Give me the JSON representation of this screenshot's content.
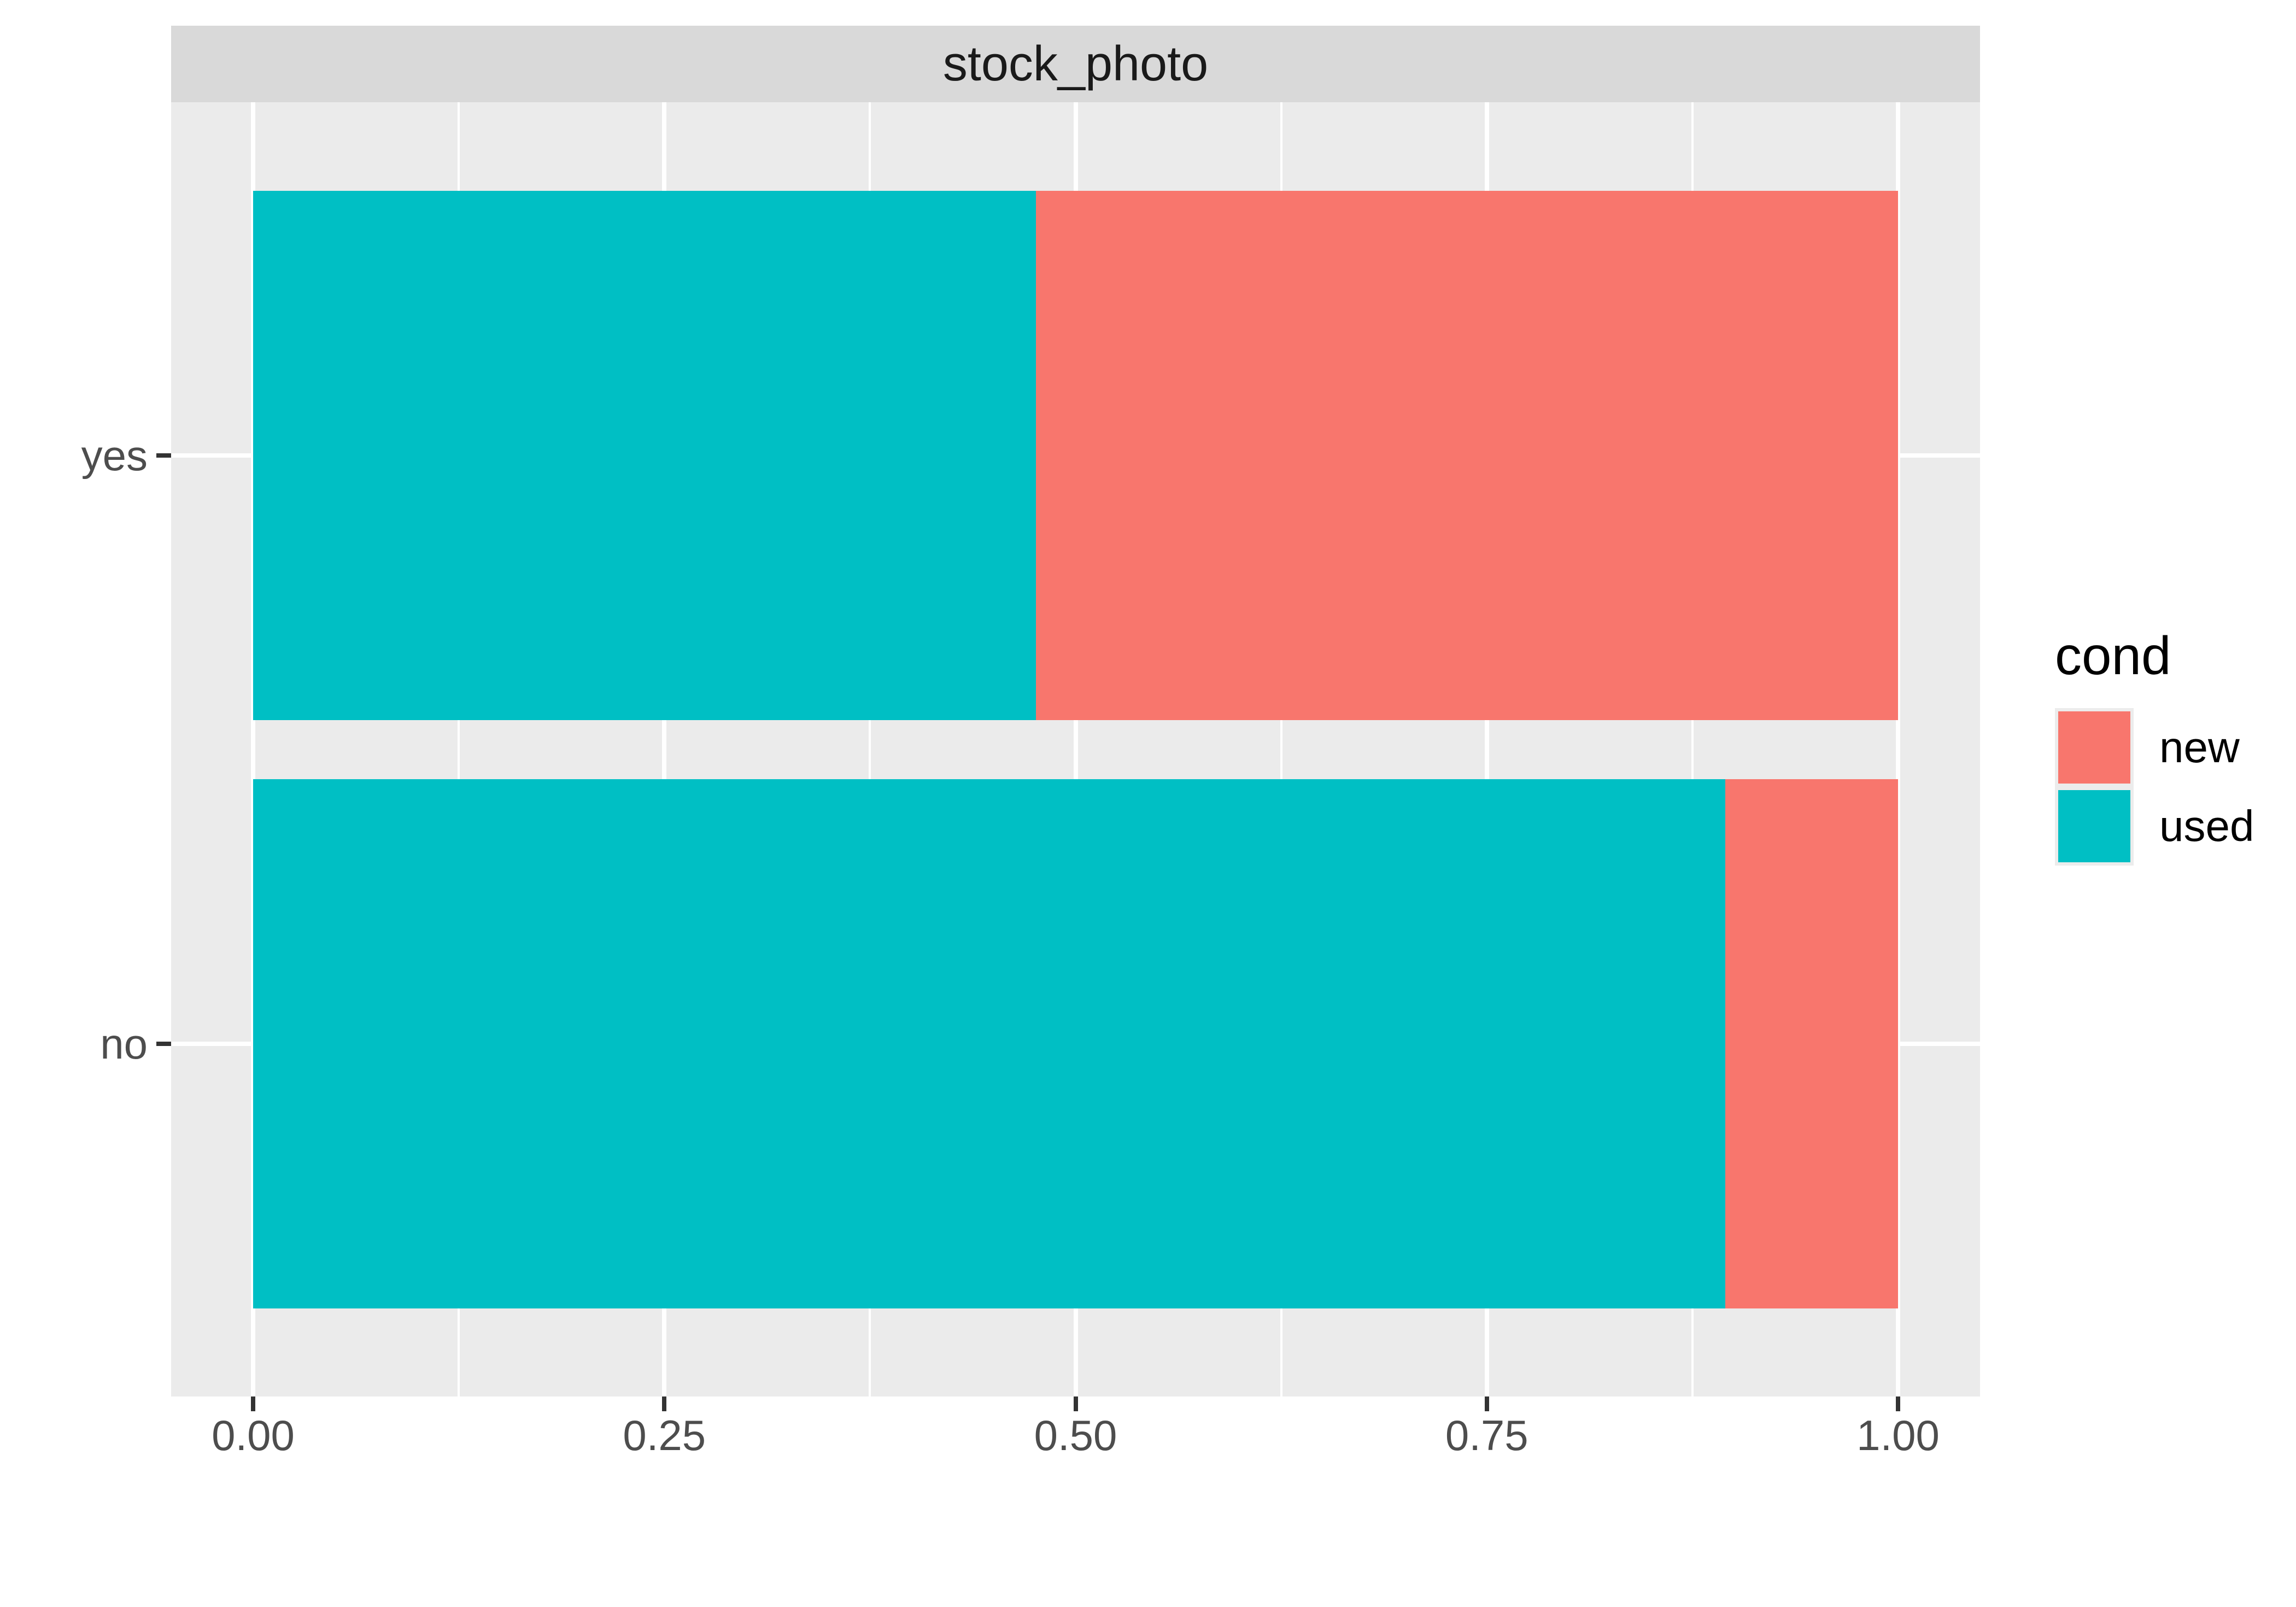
{
  "facet_strip": {
    "label": "stock_photo"
  },
  "legend": {
    "title": "cond",
    "entries": [
      {
        "label": "new",
        "color": "#F8766D"
      },
      {
        "label": "used",
        "color": "#00BFC4"
      }
    ]
  },
  "x_axis": {
    "tick_labels": [
      "0.00",
      "0.25",
      "0.50",
      "0.75",
      "1.00"
    ],
    "tick_values": [
      0,
      0.25,
      0.5,
      0.75,
      1
    ]
  },
  "y_axis": {
    "tick_labels": [
      "yes",
      "no"
    ]
  },
  "chart_data": {
    "type": "bar",
    "orientation": "horizontal",
    "stacked": true,
    "normalized": true,
    "title": "stock_photo",
    "legend_title": "cond",
    "legend_position": "right",
    "categories": [
      "yes",
      "no"
    ],
    "series": [
      {
        "name": "used",
        "color": "#00BFC4",
        "values": [
          0.476,
          0.895
        ]
      },
      {
        "name": "new",
        "color": "#F8766D",
        "values": [
          0.524,
          0.105
        ]
      }
    ],
    "xlim": [
      0,
      1
    ],
    "x_ticks": [
      0,
      0.25,
      0.5,
      0.75,
      1
    ],
    "x_minor_ticks": [
      0.125,
      0.375,
      0.625,
      0.875
    ],
    "xlabel": "",
    "ylabel": "",
    "grid": "white major and minor gridlines on gray panel"
  },
  "colors": {
    "background": "#FFFFFF",
    "panel_bg": "#EBEBEB",
    "strip_bg": "#D9D9D9",
    "grid": "#FFFFFF",
    "tick": "#333333",
    "axis_text": "#4D4D4D",
    "strip_text": "#1A1A1A",
    "legend_text": "#000000",
    "legend_key_bg": "#ECECEC"
  }
}
